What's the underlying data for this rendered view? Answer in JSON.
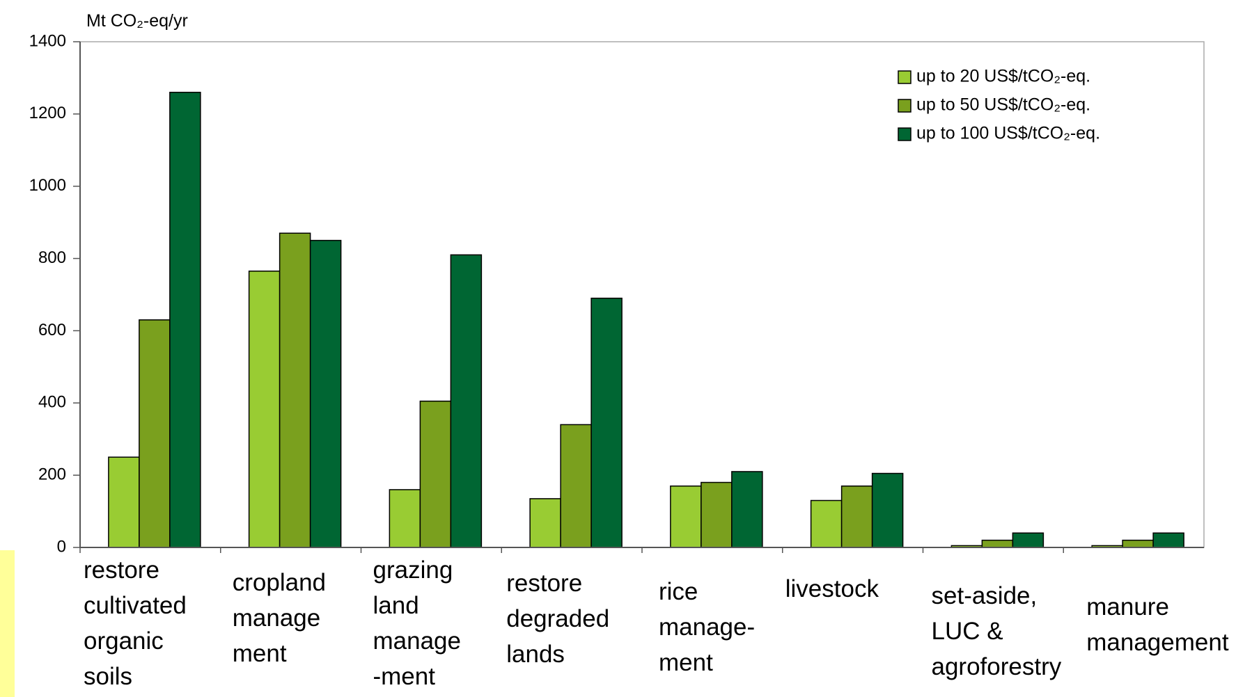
{
  "chart_data": {
    "type": "bar",
    "y_axis_label": "Mt CO₂-eq/yr",
    "categories": [
      "restore\ncultivated\norganic\nsoils",
      "cropland\nmanage\nment",
      "grazing\nland\nmanage\n-ment",
      "restore\ndegraded\nlands",
      "rice\nmanage-\nment",
      "livestock",
      "set-aside,\nLUC &\nagroforestry",
      "manure\nmanagement"
    ],
    "series": [
      {
        "name": "up to 20 US$/tCO₂-eq.",
        "color": "#99cc33",
        "values": [
          250,
          765,
          160,
          135,
          170,
          130,
          5,
          5
        ]
      },
      {
        "name": "up to 50 US$/tCO₂-eq.",
        "color": "#7aa01e",
        "values": [
          630,
          870,
          405,
          340,
          180,
          170,
          20,
          20
        ]
      },
      {
        "name": "up to 100 US$/tCO₂-eq.",
        "color": "#006633",
        "values": [
          1260,
          850,
          810,
          690,
          210,
          205,
          40,
          40
        ]
      }
    ],
    "ylim": [
      0,
      1400
    ],
    "yticks": [
      0,
      200,
      400,
      600,
      800,
      1000,
      1200,
      1400
    ],
    "legend": "upper right"
  }
}
